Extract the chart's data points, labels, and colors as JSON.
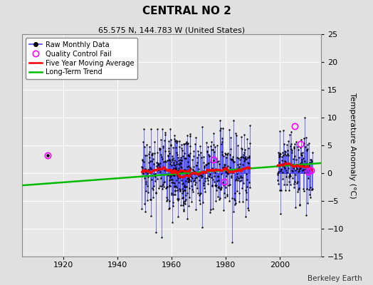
{
  "title": "CENTRAL NO 2",
  "subtitle": "65.575 N, 144.783 W (United States)",
  "ylabel": "Temperature Anomaly (°C)",
  "watermark": "Berkeley Earth",
  "xlim": [
    1905,
    2015
  ],
  "ylim": [
    -15,
    25
  ],
  "yticks": [
    -15,
    -10,
    -5,
    0,
    5,
    10,
    15,
    20,
    25
  ],
  "xticks": [
    1920,
    1940,
    1960,
    1980,
    2000
  ],
  "bg_color": "#e0e0e0",
  "plot_bg_color": "#e8e8e8",
  "grid_color": "#ffffff",
  "raw_line_color": "#4444ff",
  "dot_color": "#000000",
  "moving_avg_color": "#ff0000",
  "trend_color": "#00bb00",
  "qc_color": "#ff00ff",
  "moving_avg_lw": 1.8,
  "trend_lw": 1.8,
  "seed": 17,
  "seg1_start": 1949,
  "seg1_end": 1967,
  "seg2_start": 1959,
  "seg2_end": 1989,
  "seg3_start": 1999,
  "seg3_end": 2012,
  "isolated_x": 1914.3,
  "isolated_y": 3.2,
  "trend_x": [
    1905,
    2015
  ],
  "trend_y": [
    -2.2,
    1.8
  ],
  "qc_points": [
    [
      1914.3,
      3.2
    ],
    [
      2005.5,
      8.5
    ],
    [
      2007.5,
      5.2
    ],
    [
      1975.5,
      2.5
    ],
    [
      1979.5,
      -1.5
    ],
    [
      2010.5,
      0.3
    ],
    [
      2011.5,
      0.5
    ]
  ]
}
